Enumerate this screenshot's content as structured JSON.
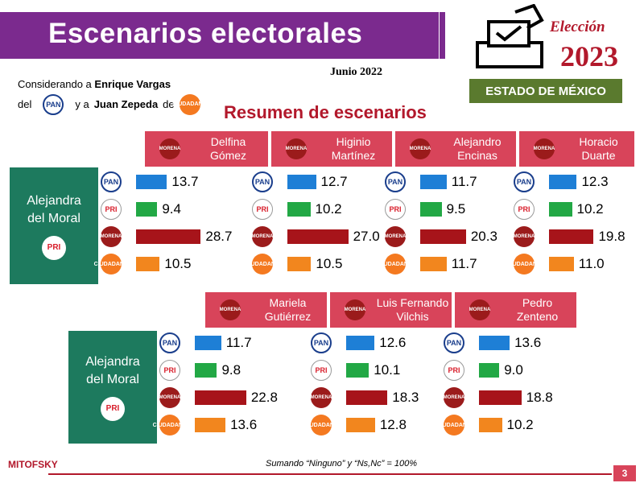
{
  "header": {
    "title": "Escenarios electorales",
    "date": "Junio 2022",
    "consider_line1_prefix": "Considerando a",
    "consider_line1_name": "Enrique Vargas",
    "consider_line2_del": "del",
    "consider_line2_mid": "y a",
    "consider_line2_name": "Juan Zepeda",
    "consider_line2_de": "de",
    "logo_election": "Elección",
    "logo_year": "2023",
    "logo_state": "ESTADO DE MÉXICO",
    "subtitle": "Resumen de escenarios"
  },
  "party_labels": {
    "pan": "PAN",
    "pri": "PRI",
    "morena": "MORENA",
    "mc": "CIUDADANO"
  },
  "side_candidate": "Alejandra del Moral",
  "colors": {
    "PAN": "#1e7fd6",
    "PRI": "#22a845",
    "MORENA": "#a7141a",
    "MC": "#f2861e"
  },
  "chart_data": [
    {
      "type": "bar",
      "rival_candidate": "Delfina Gómez",
      "rival_line1": "Delfina",
      "rival_line2": "Gómez",
      "categories": [
        "PAN",
        "PRI",
        "MORENA",
        "MC"
      ],
      "values": [
        13.7,
        9.4,
        28.7,
        10.5
      ],
      "labels": [
        "13.7",
        "9.4",
        "28.7",
        "10.5"
      ]
    },
    {
      "type": "bar",
      "rival_candidate": "Higinio Martínez",
      "rival_line1": "Higinio",
      "rival_line2": "Martínez",
      "categories": [
        "PAN",
        "PRI",
        "MORENA",
        "MC"
      ],
      "values": [
        12.7,
        10.2,
        27.0,
        10.5
      ],
      "labels": [
        "12.7",
        "10.2",
        "27.0",
        "10.5"
      ]
    },
    {
      "type": "bar",
      "rival_candidate": "Alejandro Encinas",
      "rival_line1": "Alejandro",
      "rival_line2": "Encinas",
      "categories": [
        "PAN",
        "PRI",
        "MORENA",
        "MC"
      ],
      "values": [
        11.7,
        9.5,
        20.3,
        11.7
      ],
      "labels": [
        "11.7",
        "9.5",
        "20.3",
        "11.7"
      ]
    },
    {
      "type": "bar",
      "rival_candidate": "Horacio Duarte",
      "rival_line1": "Horacio",
      "rival_line2": "Duarte",
      "categories": [
        "PAN",
        "PRI",
        "MORENA",
        "MC"
      ],
      "values": [
        12.3,
        10.2,
        19.8,
        11.0
      ],
      "labels": [
        "12.3",
        "10.2",
        "19.8",
        "11.0"
      ]
    },
    {
      "type": "bar",
      "rival_candidate": "Mariela Gutiérrez",
      "rival_line1": "Mariela",
      "rival_line2": "Gutiérrez",
      "categories": [
        "PAN",
        "PRI",
        "MORENA",
        "MC"
      ],
      "values": [
        11.7,
        9.8,
        22.8,
        13.6
      ],
      "labels": [
        "11.7",
        "9.8",
        "22.8",
        "13.6"
      ]
    },
    {
      "type": "bar",
      "rival_candidate": "Luis Fernando Vilchis",
      "rival_line1": "Luis Fernando",
      "rival_line2": "Vilchis",
      "categories": [
        "PAN",
        "PRI",
        "MORENA",
        "MC"
      ],
      "values": [
        12.6,
        10.1,
        18.3,
        12.8
      ],
      "labels": [
        "12.6",
        "10.1",
        "18.3",
        "12.8"
      ]
    },
    {
      "type": "bar",
      "rival_candidate": "Pedro Zenteno",
      "rival_line1": "Pedro",
      "rival_line2": "Zenteno",
      "categories": [
        "PAN",
        "PRI",
        "MORENA",
        "MC"
      ],
      "values": [
        13.6,
        9.0,
        18.8,
        10.2
      ],
      "labels": [
        "13.6",
        "9.0",
        "18.8",
        "10.2"
      ]
    }
  ],
  "footer": {
    "note": "Sumando “Ninguno” y “Ns,Nc” = 100%",
    "brand": "MITOFSKY",
    "page": "3"
  }
}
